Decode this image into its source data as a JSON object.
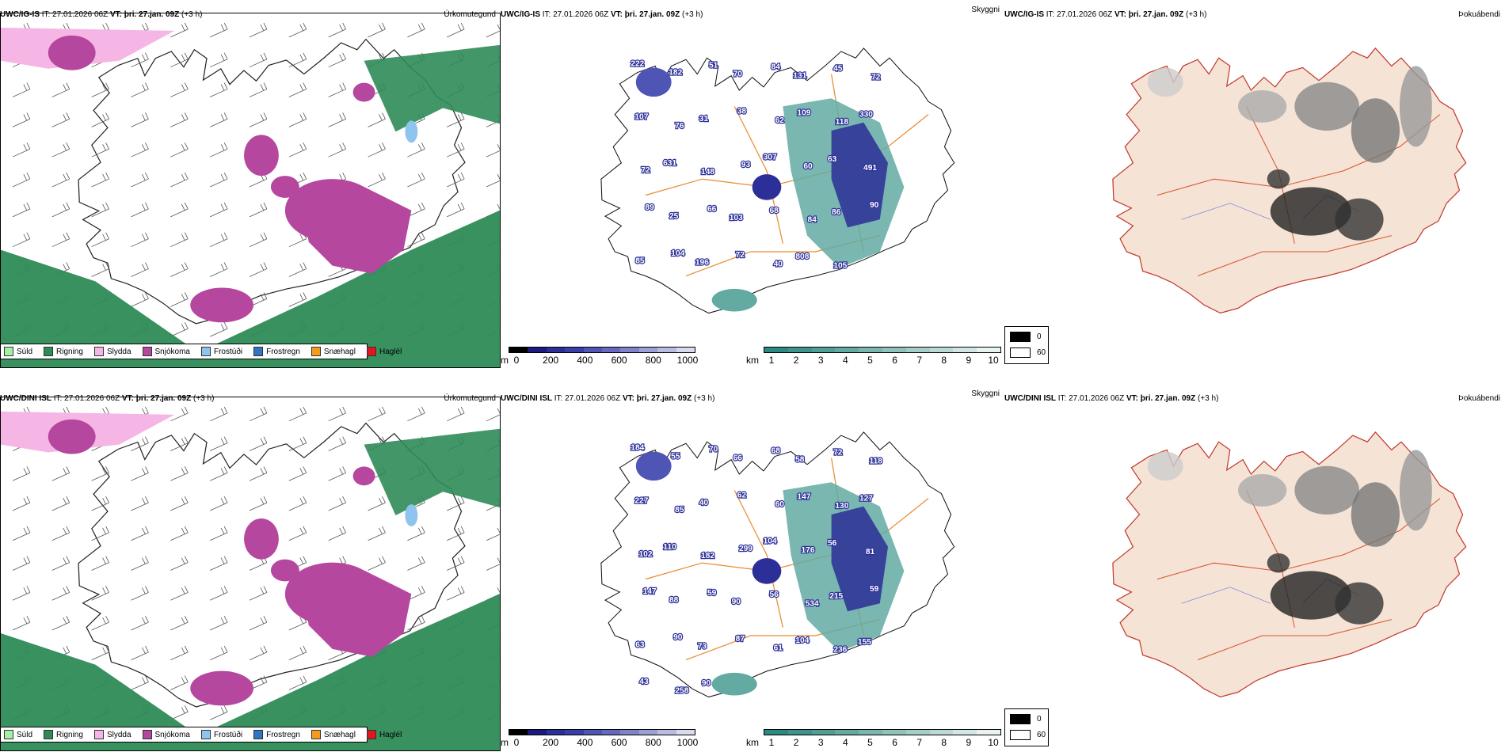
{
  "rows": [
    {
      "model": "UWC/IG-IS",
      "it_label": "IT:",
      "it_value": "27.01.2026 06Z",
      "vt_label": "VT:",
      "vt_value": "þri. 27.jan. 09Z",
      "lead": "(+3 h)",
      "ptype_title": "Úrkomutegund",
      "vis_title": "Skyggni",
      "fog_title": "Þokuábendi",
      "vis_labels": [
        "222",
        "182",
        "51",
        "70",
        "84",
        "131",
        "45",
        "72",
        "107",
        "76",
        "31",
        "38",
        "62",
        "109",
        "118",
        "330",
        "72",
        "631",
        "148",
        "93",
        "307",
        "60",
        "63",
        "491",
        "89",
        "25",
        "66",
        "103",
        "68",
        "84",
        "86",
        "90",
        "85",
        "104",
        "196",
        "72",
        "40",
        "808",
        "105"
      ]
    },
    {
      "model": "UWC/DINI ISL",
      "it_label": "IT:",
      "it_value": "27.01.2026 06Z",
      "vt_label": "VT:",
      "vt_value": "þri. 27.jan. 09Z",
      "lead": "(+3 h)",
      "ptype_title": "Úrkomutegund",
      "vis_title": "Skyggni",
      "fog_title": "Þokuábendi",
      "vis_labels": [
        "184",
        "55",
        "70",
        "66",
        "68",
        "58",
        "72",
        "118",
        "227",
        "85",
        "40",
        "62",
        "60",
        "147",
        "130",
        "127",
        "102",
        "110",
        "182",
        "299",
        "104",
        "176",
        "56",
        "81",
        "147",
        "88",
        "59",
        "90",
        "56",
        "534",
        "215",
        "59",
        "63",
        "90",
        "73",
        "87",
        "61",
        "104",
        "236",
        "155",
        "43",
        "258",
        "90"
      ]
    }
  ],
  "ptype_legend": [
    {
      "label": "Súld",
      "color": "#a6f0a6"
    },
    {
      "label": "Rigning",
      "color": "#2e8b57"
    },
    {
      "label": "Slydda",
      "color": "#f5b6e6"
    },
    {
      "label": "Snjókoma",
      "color": "#b5479f"
    },
    {
      "label": "Frostúði",
      "color": "#8fc4ef"
    },
    {
      "label": "Frostregn",
      "color": "#2f75c4"
    },
    {
      "label": "Snæhagl",
      "color": "#f49a1c"
    },
    {
      "label": "Haglél",
      "color": "#e3141b"
    }
  ],
  "height_scale": {
    "unit": "m",
    "ticks": [
      "0",
      "200",
      "400",
      "600",
      "800",
      "1000"
    ],
    "colors": [
      "#000000",
      "#1a1a80",
      "#2c2f98",
      "#3a3ea8",
      "#4f55b4",
      "#6669bf",
      "#7f84ca",
      "#9ba0d6",
      "#b9bde3",
      "#d8dbef"
    ]
  },
  "km_scale": {
    "unit": "km",
    "ticks": [
      "1",
      "2",
      "3",
      "4",
      "5",
      "6",
      "7",
      "8",
      "9",
      "10"
    ],
    "colors": [
      "#2a8a82",
      "#3c948c",
      "#4f9f97",
      "#63aaa2",
      "#78b6ae",
      "#8ec2bb",
      "#a4cec8",
      "#bbdad5",
      "#d2e7e3",
      "#e9f3f1"
    ]
  },
  "fog_legend": [
    {
      "label": "0",
      "color": "#000000"
    },
    {
      "label": "60",
      "color": "#ffffff"
    }
  ]
}
